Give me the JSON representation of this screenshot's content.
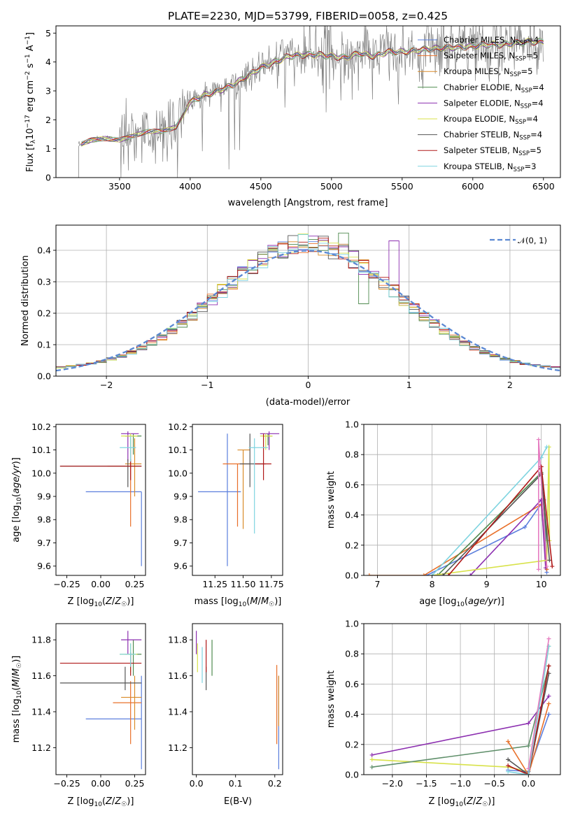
{
  "colors": {
    "Chabrier MILES": "#5b7fdd",
    "Salpeter MILES": "#e8702a",
    "Kroupa MILES": "#d98c2a",
    "Chabrier ELODIE": "#4f8a4f",
    "Salpeter ELODIE": "#8c2fb0",
    "Kroupa ELODIE": "#d8e24a",
    "Chabrier STELIB": "#555555",
    "Salpeter STELIB": "#b01818",
    "Kroupa STELIB": "#7fd4e0",
    "Norm curve": "#5b88d2",
    "Pink": "#e57cc0",
    "Green2": "#5f8f6a"
  },
  "chart_data": [
    {
      "type": "line",
      "title": "PLATE=2230, MJD=53799, FIBERID=0058, z=0.425",
      "xlabel": "wavelength [Angstrom, rest frame]",
      "ylabel": "Flux [f_λ 10^-17 erg cm^-2 s^-1 A^-1]",
      "xlim": [
        3050,
        6620
      ],
      "ylim": [
        0,
        5.25
      ],
      "xticks": [
        3500,
        4000,
        4500,
        5000,
        5500,
        6000,
        6500
      ],
      "yticks": [
        0,
        1,
        2,
        3,
        4,
        5
      ],
      "legend_position": "top-right",
      "legend": [
        {
          "name": "Chabrier MILES",
          "nssp": "4"
        },
        {
          "name": "Salpeter MILES",
          "nssp": "5"
        },
        {
          "name": "Kroupa MILES",
          "nssp": "5"
        },
        {
          "name": "Chabrier ELODIE",
          "nssp": "4"
        },
        {
          "name": "Salpeter ELODIE",
          "nssp": "4"
        },
        {
          "name": "Kroupa ELODIE",
          "nssp": "4"
        },
        {
          "name": "Chabrier STELIB",
          "nssp": "4"
        },
        {
          "name": "Salpeter STELIB",
          "nssp": "5"
        },
        {
          "name": "Kroupa STELIB",
          "nssp": "3"
        }
      ],
      "continuum": {
        "x": [
          3200,
          3300,
          3400,
          3500,
          3600,
          3700,
          3800,
          3900,
          4000,
          4100,
          4200,
          4300,
          4400,
          4500,
          4600,
          4700,
          4800,
          4900,
          5000,
          5100,
          5200,
          5300,
          5400,
          5500,
          5600,
          5700,
          5800,
          5900,
          6000,
          6100,
          6200,
          6300,
          6400,
          6500
        ],
        "y": [
          1.1,
          1.3,
          1.35,
          1.3,
          1.45,
          1.6,
          1.6,
          1.75,
          2.6,
          2.85,
          3.0,
          3.2,
          3.5,
          3.8,
          4.0,
          4.2,
          4.25,
          4.25,
          4.2,
          4.15,
          4.3,
          4.2,
          4.35,
          4.35,
          4.4,
          4.45,
          4.5,
          4.5,
          4.55,
          4.6,
          4.6,
          4.65,
          4.7,
          4.7
        ]
      }
    },
    {
      "type": "line",
      "xlabel": "(data-model)/error",
      "ylabel": "Normed distribution",
      "xlim": [
        -2.5,
        2.5
      ],
      "ylim": [
        0,
        0.48
      ],
      "xticks": [
        -2,
        -1,
        0,
        1,
        2
      ],
      "yticks": [
        0.0,
        0.1,
        0.2,
        0.3,
        0.4
      ],
      "grid": true,
      "legend_position": "top-right",
      "legend": [
        "N(0,1)"
      ]
    },
    {
      "type": "scatter",
      "panel": "age vs Z",
      "xlabel": "Z [log10(Z/Z_sun)]",
      "ylabel": "age [log10(age/yr)]",
      "xlim": [
        -0.33,
        0.33
      ],
      "ylim": [
        9.56,
        10.21
      ],
      "xticks": [
        -0.25,
        0.0,
        0.25
      ],
      "yticks": [
        9.6,
        9.7,
        9.8,
        9.9,
        10.0,
        10.1,
        10.2
      ],
      "points": [
        {
          "name": "Chabrier MILES",
          "x": 0.3,
          "y": 9.92
        },
        {
          "name": "Salpeter MILES",
          "x": 0.22,
          "y": 10.03
        },
        {
          "name": "Kroupa MILES",
          "x": 0.25,
          "y": 10.04
        },
        {
          "name": "Chabrier ELODIE",
          "x": 0.24,
          "y": 10.16
        },
        {
          "name": "Salpeter ELODIE",
          "x": 0.2,
          "y": 10.17
        },
        {
          "name": "Kroupa ELODIE",
          "x": 0.22,
          "y": 10.16
        },
        {
          "name": "Chabrier STELIB",
          "x": 0.2,
          "y": 10.03
        },
        {
          "name": "Salpeter STELIB",
          "x": 0.22,
          "y": 10.03
        },
        {
          "name": "Kroupa STELIB",
          "x": 0.22,
          "y": 10.11
        }
      ]
    },
    {
      "type": "scatter",
      "panel": "age vs mass",
      "xlabel": "mass [log10(M/M_sun)]",
      "xlim": [
        11.05,
        11.85
      ],
      "ylim": [
        9.56,
        10.21
      ],
      "xticks": [
        11.25,
        11.5,
        11.75
      ],
      "tick_labels": [
        "11.25",
        "11.50",
        "11.75"
      ],
      "yticks": [
        9.6,
        9.7,
        9.8,
        9.9,
        10.0,
        10.1,
        10.2
      ]
    },
    {
      "type": "line",
      "panel": "mass weight vs age",
      "xlabel": "age [log10(age/yr)]",
      "ylabel": "mass weight",
      "xlim": [
        6.75,
        10.35
      ],
      "ylim": [
        0,
        1
      ],
      "xticks": [
        7,
        8,
        9,
        10
      ],
      "yticks": [
        0.0,
        0.2,
        0.4,
        0.6,
        0.8,
        1.0
      ],
      "grid": true
    },
    {
      "type": "scatter",
      "panel": "mass vs Z",
      "xlabel": "Z [log10(Z/Z_sun)]",
      "ylabel": "mass [log10(M/M_sun)]",
      "xlim": [
        -0.33,
        0.33
      ],
      "ylim": [
        11.05,
        11.89
      ],
      "xticks": [
        -0.25,
        0.0,
        0.25
      ],
      "yticks": [
        11.2,
        11.4,
        11.6,
        11.8
      ]
    },
    {
      "type": "scatter",
      "panel": "mass vs E(B-V)",
      "xlabel": "E(B-V)",
      "xlim": [
        -0.01,
        0.22
      ],
      "ylim": [
        11.05,
        11.89
      ],
      "xticks": [
        0.0,
        0.1,
        0.2
      ],
      "yticks": [
        11.2,
        11.4,
        11.6,
        11.8
      ]
    },
    {
      "type": "line",
      "panel": "mass weight vs Z",
      "xlabel": "Z [log10(Z/Z_sun)]",
      "ylabel": "mass weight",
      "xlim": [
        -2.42,
        0.47
      ],
      "ylim": [
        0,
        1
      ],
      "xticks": [
        -2.0,
        -1.5,
        -1.0,
        -0.5,
        0.0
      ],
      "yticks": [
        0.0,
        0.2,
        0.4,
        0.6,
        0.8,
        1.0
      ],
      "grid": true
    }
  ]
}
